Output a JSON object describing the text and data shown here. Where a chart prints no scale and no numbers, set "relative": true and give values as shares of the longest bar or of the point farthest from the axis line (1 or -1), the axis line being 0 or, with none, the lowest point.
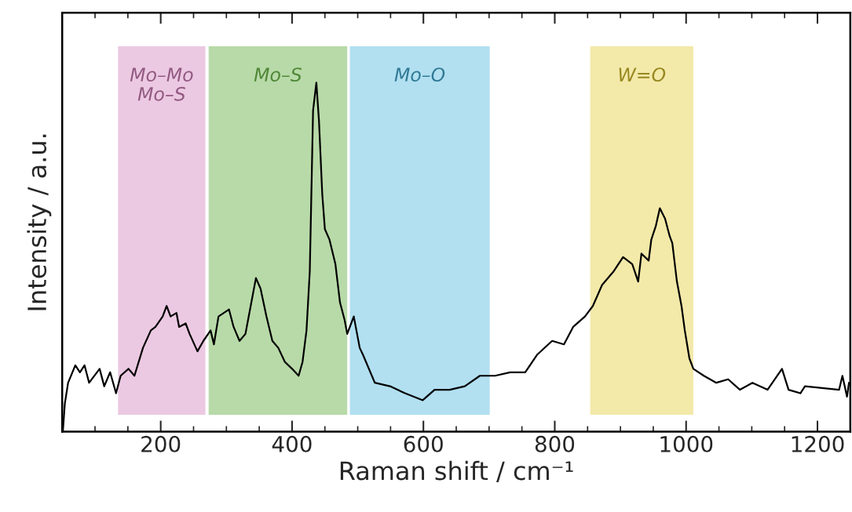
{
  "chart_data": {
    "type": "line",
    "xlabel": "Raman shift / cm⁻¹",
    "ylabel": "Intensity / a.u.",
    "relative": true,
    "xlim": [
      50,
      1250
    ],
    "xticks": [
      {
        "value": 100,
        "label": null
      },
      {
        "value": 150,
        "label": null
      },
      200,
      {
        "value": 250,
        "label": null
      },
      {
        "value": 300,
        "label": null
      },
      {
        "value": 350,
        "label": null
      },
      400,
      {
        "value": 450,
        "label": null
      },
      {
        "value": 500,
        "label": null
      },
      {
        "value": 550,
        "label": null
      },
      600,
      {
        "value": 650,
        "label": null
      },
      {
        "value": 700,
        "label": null
      },
      {
        "value": 750,
        "label": null
      },
      800,
      {
        "value": 850,
        "label": null
      },
      {
        "value": 900,
        "label": null
      },
      {
        "value": 950,
        "label": null
      },
      1000,
      {
        "value": 1050,
        "label": null
      },
      {
        "value": 1100,
        "label": null
      },
      {
        "value": 1150,
        "label": null
      },
      1200
    ],
    "grid": false,
    "bands": [
      {
        "axis": "x",
        "from": 135,
        "to": 268,
        "label": "Mo–Mo\nMo–S",
        "color": "#ecc9e2"
      },
      {
        "axis": "x",
        "from": 273,
        "to": 484,
        "label": "Mo–S",
        "color": "#b8daa8"
      },
      {
        "axis": "x",
        "from": 488,
        "to": 701,
        "label": "Mo–O",
        "color": "#b2e0f1"
      },
      {
        "axis": "x",
        "from": 854,
        "to": 1011,
        "label": "W=O",
        "color": "#f3e9a9"
      }
    ],
    "series": [
      {
        "color": "#000000",
        "x": [
          51,
          54,
          59,
          70,
          77,
          84,
          91,
          107,
          114,
          123,
          132,
          139,
          151,
          160,
          173,
          185,
          192,
          203,
          209,
          215,
          224,
          228,
          238,
          244,
          256,
          265,
          276,
          281,
          288,
          304,
          311,
          320,
          329,
          338,
          345,
          352,
          361,
          370,
          379,
          389,
          400,
          410,
          416,
          422,
          427,
          432,
          437,
          441,
          446,
          450,
          457,
          466,
          473,
          480,
          484,
          494,
          503,
          508,
          526,
          549,
          572,
          599,
          617,
          640,
          663,
          686,
          709,
          732,
          755,
          773,
          796,
          814,
          828,
          846,
          858,
          872,
          890,
          904,
          918,
          927,
          932,
          943,
          947,
          954,
          960,
          968,
          975,
          979,
          986,
          993,
          998,
          1005,
          1011,
          1027,
          1046,
          1064,
          1082,
          1101,
          1124,
          1146,
          1156,
          1174,
          1181,
          1233,
          1238,
          1245,
          1248
        ],
        "values": [
          0,
          0.08,
          0.14,
          0.19,
          0.17,
          0.19,
          0.14,
          0.18,
          0.13,
          0.17,
          0.11,
          0.16,
          0.18,
          0.16,
          0.24,
          0.29,
          0.3,
          0.33,
          0.36,
          0.33,
          0.34,
          0.3,
          0.31,
          0.28,
          0.23,
          0.26,
          0.29,
          0.25,
          0.33,
          0.35,
          0.3,
          0.26,
          0.28,
          0.37,
          0.44,
          0.41,
          0.33,
          0.26,
          0.24,
          0.2,
          0.18,
          0.16,
          0.2,
          0.29,
          0.46,
          0.92,
          1.0,
          0.89,
          0.68,
          0.58,
          0.55,
          0.48,
          0.37,
          0.32,
          0.28,
          0.33,
          0.24,
          0.22,
          0.14,
          0.13,
          0.11,
          0.09,
          0.12,
          0.12,
          0.13,
          0.16,
          0.16,
          0.17,
          0.17,
          0.22,
          0.26,
          0.25,
          0.3,
          0.33,
          0.36,
          0.42,
          0.46,
          0.5,
          0.48,
          0.43,
          0.51,
          0.49,
          0.55,
          0.59,
          0.64,
          0.61,
          0.56,
          0.54,
          0.43,
          0.36,
          0.29,
          0.21,
          0.18,
          0.16,
          0.14,
          0.15,
          0.12,
          0.14,
          0.12,
          0.18,
          0.12,
          0.11,
          0.13,
          0.12,
          0.16,
          0.1,
          0.14
        ]
      }
    ]
  }
}
